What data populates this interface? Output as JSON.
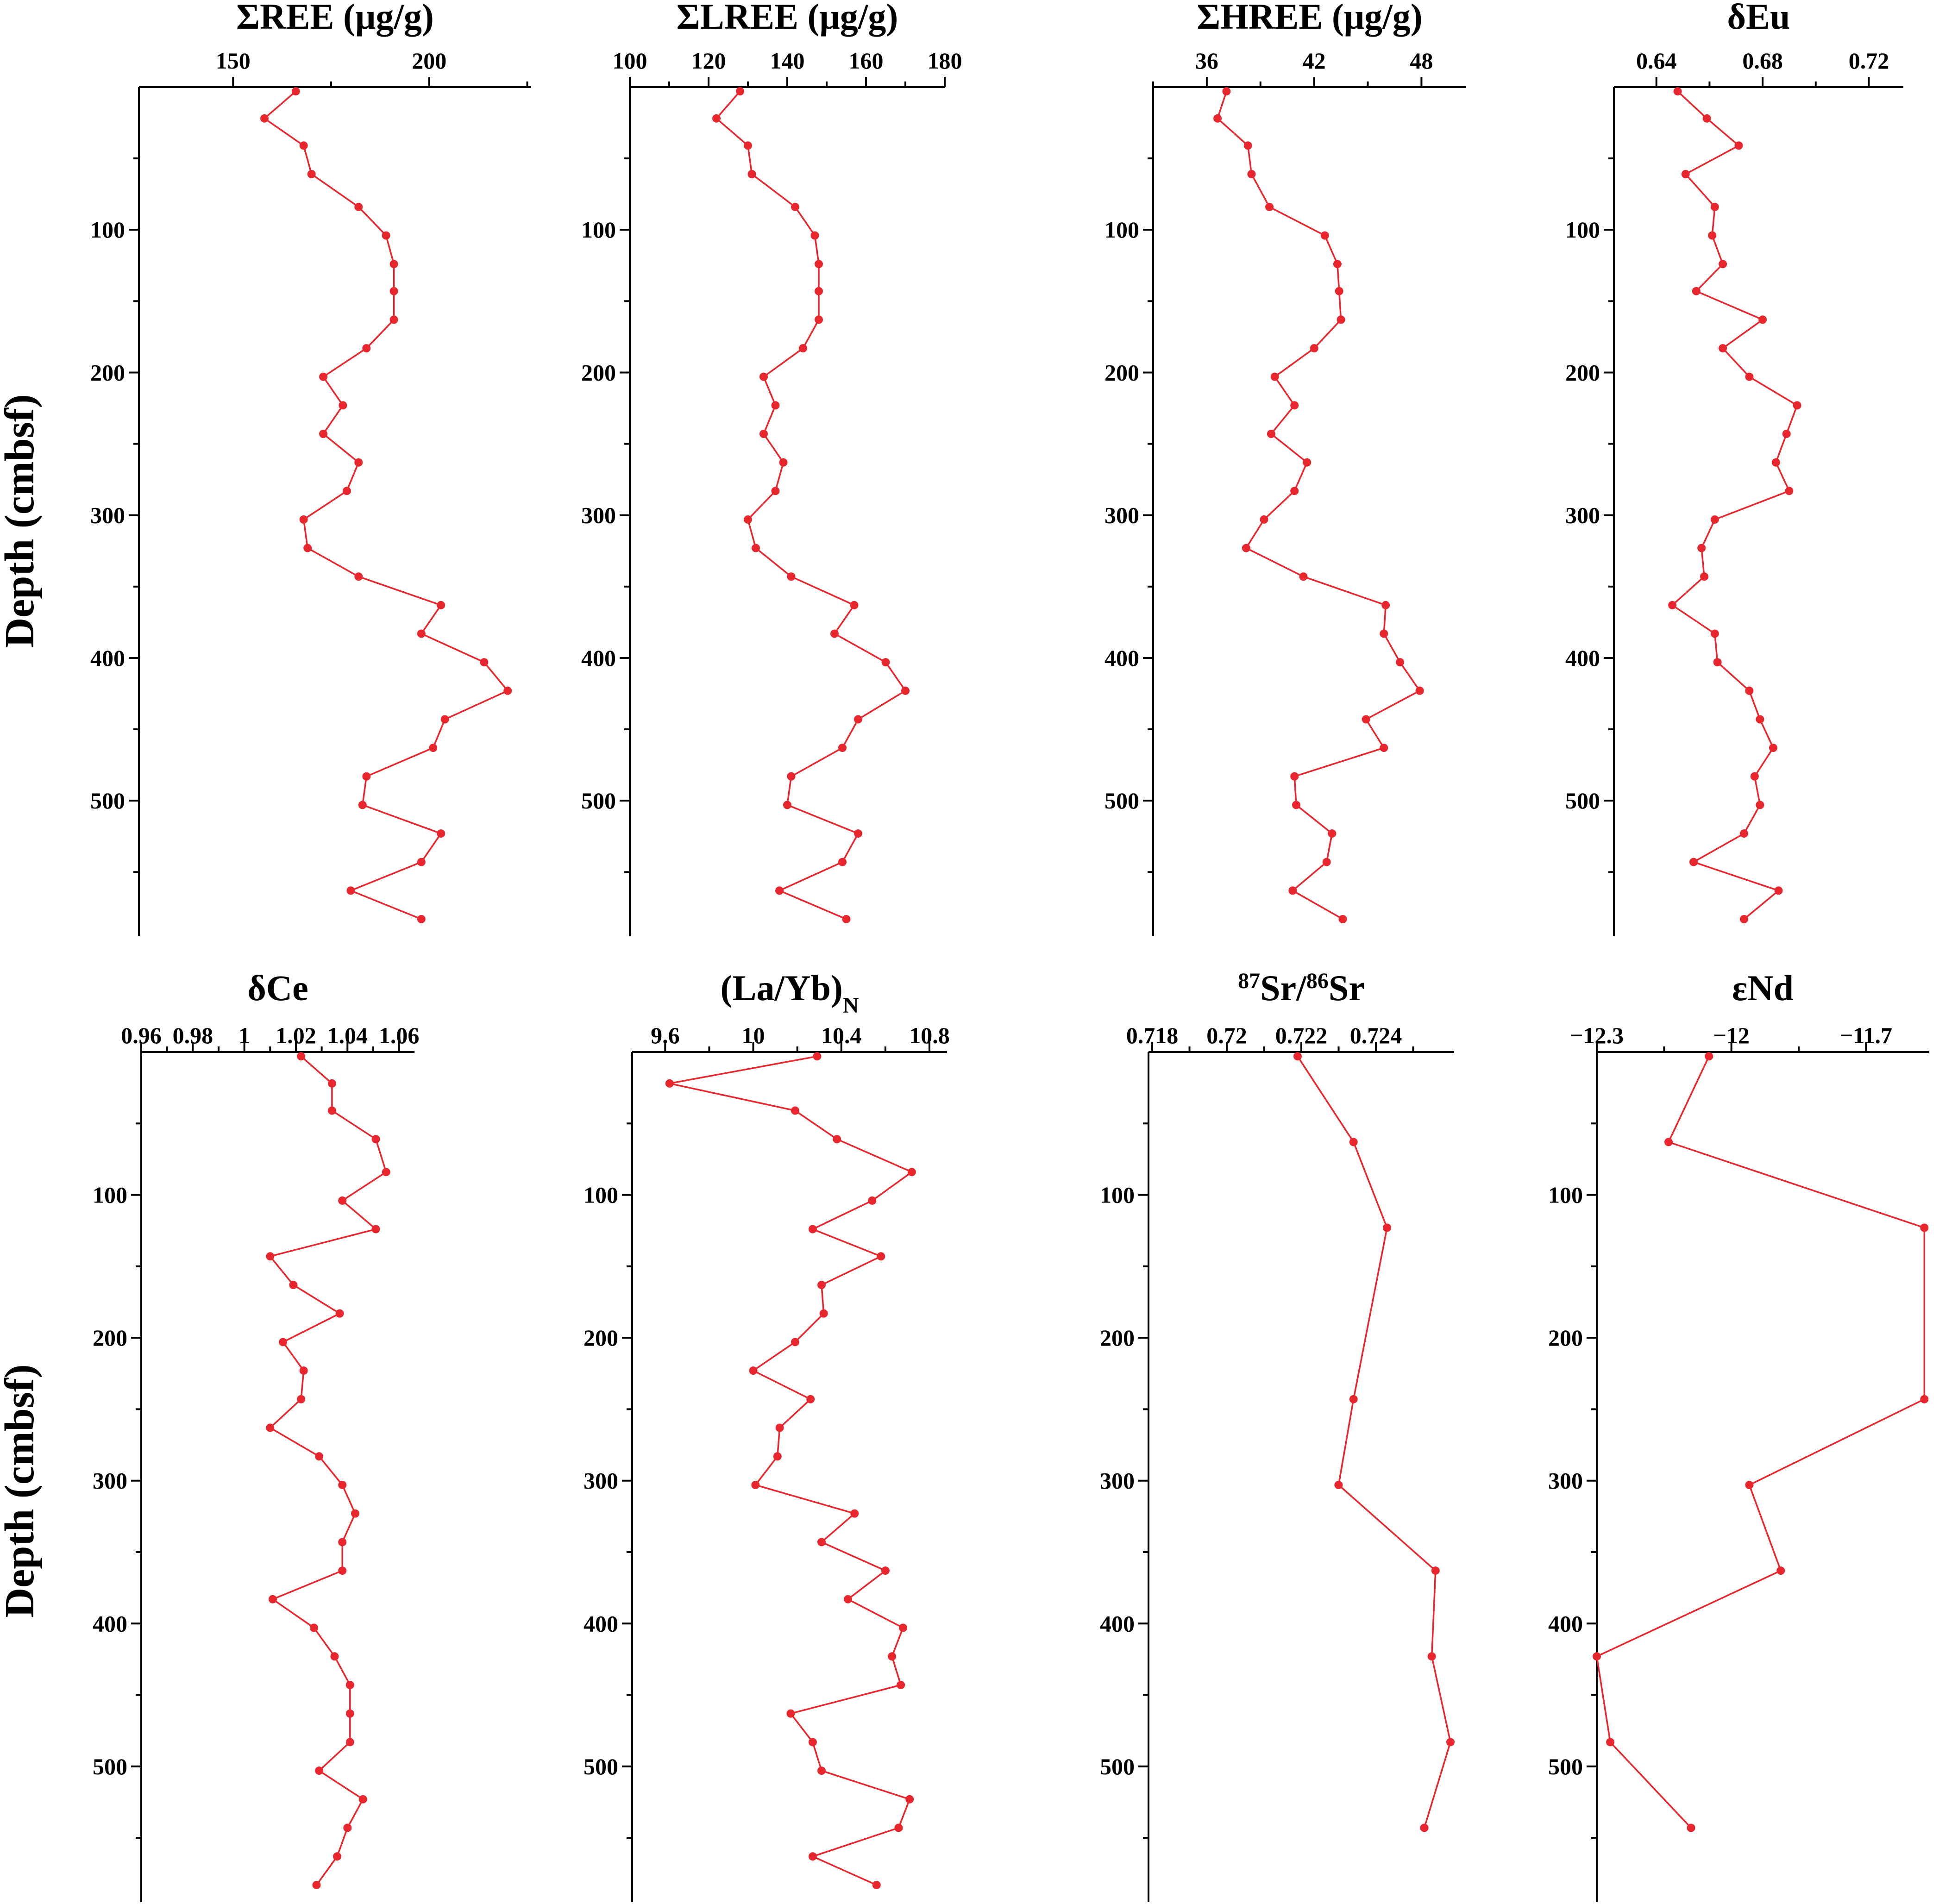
{
  "colors": {
    "series": "#e8262d",
    "axis": "#000000"
  },
  "depth_label": "Depth (cmbsf)",
  "chart_data": [
    {
      "type": "line",
      "title": "ΣREE (μg/g)",
      "title_parts": [
        {
          "t": "ΣREE (μg/g)"
        }
      ],
      "xlim": [
        126,
        226
      ],
      "xticks": [
        150,
        200
      ],
      "xminor": [
        175,
        225
      ],
      "ylim": [
        0,
        595
      ],
      "yticks": [
        100,
        200,
        300,
        400,
        500
      ],
      "y_reversed": true,
      "x": [
        166,
        158,
        168,
        170,
        182,
        189,
        191,
        191,
        191,
        184,
        173,
        178,
        173,
        182,
        179,
        168,
        169,
        182,
        203,
        198,
        214,
        220,
        204,
        201,
        184,
        183,
        203,
        198,
        180,
        198
      ],
      "y": [
        3,
        22,
        41,
        61,
        84,
        104,
        124,
        143,
        163,
        183,
        203,
        223,
        243,
        263,
        283,
        303,
        323,
        343,
        363,
        383,
        403,
        423,
        443,
        463,
        483,
        503,
        523,
        543,
        563,
        583
      ]
    },
    {
      "type": "line",
      "title": "ΣLREE (μg/g)",
      "title_parts": [
        {
          "t": "ΣLREE (μg/g)"
        }
      ],
      "xlim": [
        100,
        180
      ],
      "xticks": [
        100,
        120,
        140,
        160,
        180
      ],
      "xminor": [
        110,
        130,
        150,
        170
      ],
      "ylim": [
        0,
        595
      ],
      "yticks": [
        100,
        200,
        300,
        400,
        500
      ],
      "y_reversed": true,
      "x": [
        128,
        122,
        130,
        131,
        142,
        147,
        148,
        148,
        148,
        144,
        134,
        137,
        134,
        139,
        137,
        130,
        132,
        141,
        157,
        152,
        165,
        170,
        158,
        154,
        141,
        140,
        158,
        154,
        138,
        155
      ],
      "y": [
        3,
        22,
        41,
        61,
        84,
        104,
        124,
        143,
        163,
        183,
        203,
        223,
        243,
        263,
        283,
        303,
        323,
        343,
        363,
        383,
        403,
        423,
        443,
        463,
        483,
        503,
        523,
        543,
        563,
        583
      ]
    },
    {
      "type": "line",
      "title": "ΣHREE (μg/g)",
      "title_parts": [
        {
          "t": "ΣHREE (μg/g)"
        }
      ],
      "xlim": [
        33,
        50.5
      ],
      "xticks": [
        36,
        42,
        48
      ],
      "xminor": [
        33,
        39,
        45
      ],
      "ylim": [
        0,
        595
      ],
      "yticks": [
        100,
        200,
        300,
        400,
        500
      ],
      "y_reversed": true,
      "x": [
        37.1,
        36.6,
        38.3,
        38.5,
        39.5,
        42.6,
        43.3,
        43.4,
        43.5,
        42.0,
        39.8,
        40.9,
        39.6,
        41.6,
        40.9,
        39.2,
        38.2,
        41.4,
        46.0,
        45.9,
        46.8,
        47.9,
        44.9,
        45.9,
        40.9,
        41.0,
        43.0,
        42.7,
        40.8,
        43.6
      ],
      "y": [
        3,
        22,
        41,
        61,
        84,
        104,
        124,
        143,
        163,
        183,
        203,
        223,
        243,
        263,
        283,
        303,
        323,
        343,
        363,
        383,
        403,
        423,
        443,
        463,
        483,
        503,
        523,
        543,
        563,
        583
      ]
    },
    {
      "type": "line",
      "title": "δEu",
      "title_parts": [
        {
          "t": "δEu"
        }
      ],
      "xlim": [
        0.624,
        0.733
      ],
      "xticks": [
        0.64,
        0.68,
        0.72
      ],
      "xminor": [
        0.66,
        0.7
      ],
      "ylim": [
        0,
        595
      ],
      "yticks": [
        100,
        200,
        300,
        400,
        500
      ],
      "y_reversed": true,
      "x": [
        0.648,
        0.659,
        0.671,
        0.651,
        0.662,
        0.661,
        0.665,
        0.655,
        0.68,
        0.665,
        0.675,
        0.693,
        0.689,
        0.685,
        0.69,
        0.662,
        0.657,
        0.658,
        0.646,
        0.662,
        0.663,
        0.675,
        0.679,
        0.684,
        0.677,
        0.679,
        0.673,
        0.654,
        0.686,
        0.673
      ],
      "y": [
        3,
        22,
        41,
        61,
        84,
        104,
        124,
        143,
        163,
        183,
        203,
        223,
        243,
        263,
        283,
        303,
        323,
        343,
        363,
        383,
        403,
        423,
        443,
        463,
        483,
        503,
        523,
        543,
        563,
        583
      ]
    },
    {
      "type": "line",
      "title": "δCe",
      "title_parts": [
        {
          "t": "δCe"
        }
      ],
      "xlim": [
        0.96,
        1.066
      ],
      "xticks": [
        0.96,
        0.98,
        1.0,
        1.02,
        1.04,
        1.06
      ],
      "xminor": [
        0.97,
        0.99,
        1.01,
        1.03,
        1.05
      ],
      "ylim": [
        0,
        595
      ],
      "yticks": [
        100,
        200,
        300,
        400,
        500
      ],
      "y_reversed": true,
      "x": [
        1.022,
        1.034,
        1.034,
        1.051,
        1.055,
        1.038,
        1.051,
        1.01,
        1.019,
        1.037,
        1.015,
        1.023,
        1.022,
        1.01,
        1.029,
        1.038,
        1.043,
        1.038,
        1.038,
        1.011,
        1.027,
        1.035,
        1.041,
        1.041,
        1.041,
        1.029,
        1.046,
        1.04,
        1.036,
        1.028
      ],
      "y": [
        3,
        22,
        41,
        61,
        84,
        104,
        124,
        143,
        163,
        183,
        203,
        223,
        243,
        263,
        283,
        303,
        323,
        343,
        363,
        383,
        403,
        423,
        443,
        463,
        483,
        503,
        523,
        543,
        563,
        583
      ]
    },
    {
      "type": "line",
      "title": "(La/Yb)N",
      "title_parts": [
        {
          "t": "(La/Yb)"
        },
        {
          "t": "N",
          "sub": true
        }
      ],
      "xlim": [
        9.45,
        10.88
      ],
      "xticks": [
        9.6,
        10.0,
        10.4,
        10.8
      ],
      "xminor": [
        9.8,
        10.2,
        10.6
      ],
      "ylim": [
        0,
        595
      ],
      "yticks": [
        100,
        200,
        300,
        400,
        500
      ],
      "y_reversed": true,
      "x": [
        10.29,
        9.62,
        10.19,
        10.38,
        10.72,
        10.54,
        10.27,
        10.58,
        10.31,
        10.32,
        10.19,
        10.0,
        10.26,
        10.12,
        10.11,
        10.01,
        10.46,
        10.31,
        10.6,
        10.43,
        10.68,
        10.63,
        10.67,
        10.17,
        10.27,
        10.31,
        10.71,
        10.66,
        10.27,
        10.56
      ],
      "y": [
        3,
        22,
        41,
        61,
        84,
        104,
        124,
        143,
        163,
        183,
        203,
        223,
        243,
        263,
        283,
        303,
        323,
        343,
        363,
        383,
        403,
        423,
        443,
        463,
        483,
        503,
        523,
        543,
        563,
        583
      ]
    },
    {
      "type": "line",
      "title": "87Sr/86Sr",
      "title_parts": [
        {
          "t": "87",
          "sup": true
        },
        {
          "t": "Sr/"
        },
        {
          "t": "86",
          "sup": true
        },
        {
          "t": "Sr"
        }
      ],
      "xlim": [
        0.7179,
        0.7261
      ],
      "xticks": [
        0.718,
        0.72,
        0.722,
        0.724
      ],
      "xminor": [
        0.719,
        0.721,
        0.723,
        0.725
      ],
      "ylim": [
        0,
        595
      ],
      "yticks": [
        100,
        200,
        300,
        400,
        500
      ],
      "y_reversed": true,
      "x": [
        0.7219,
        0.7234,
        0.7243,
        0.7234,
        0.723,
        0.7256,
        0.7255,
        0.726,
        0.7253
      ],
      "y": [
        3,
        63,
        123,
        243,
        303,
        363,
        423,
        483,
        543
      ]
    },
    {
      "type": "line",
      "title": "εNd",
      "title_parts": [
        {
          "t": "εNd"
        }
      ],
      "xlim": [
        -12.3,
        -11.56
      ],
      "xticks": [
        -12.3,
        -12.0,
        -11.7
      ],
      "xminor": [
        -12.15,
        -11.85
      ],
      "ylim": [
        0,
        595
      ],
      "yticks": [
        100,
        200,
        300,
        400,
        500
      ],
      "y_reversed": true,
      "x": [
        -12.05,
        -12.14,
        -11.57,
        -11.57,
        -11.96,
        -11.89,
        -12.3,
        -12.27,
        -12.09
      ],
      "y": [
        3,
        63,
        123,
        243,
        303,
        363,
        423,
        483,
        543
      ]
    }
  ]
}
